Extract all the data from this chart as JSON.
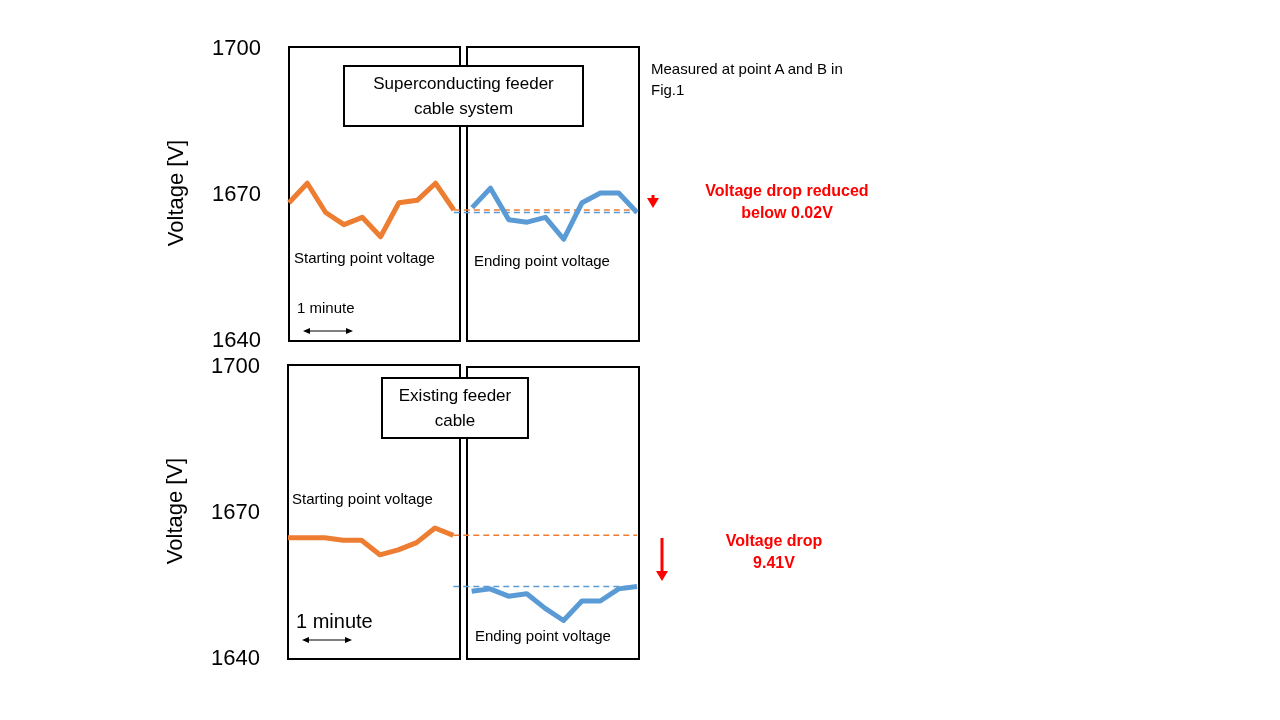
{
  "chart_data": [
    {
      "type": "line",
      "title": "Superconducting feeder cable system",
      "ylabel": "Voltage [V]",
      "categories": [
        null,
        null,
        null,
        null,
        null,
        null,
        null,
        null,
        null,
        null,
        null,
        null,
        null,
        null,
        null,
        null,
        null,
        null,
        null,
        null
      ],
      "series": [
        {
          "color": "#ed7d31",
          "values": [
            1668,
            1672,
            1666,
            1663.5,
            1665,
            1661,
            1668,
            1668.5,
            1672,
            1666.5,
            null,
            null,
            null,
            null,
            null,
            null,
            null,
            null,
            null,
            null
          ]
        },
        {
          "color": "#5b9bd5",
          "values": [
            null,
            null,
            null,
            null,
            null,
            null,
            null,
            null,
            null,
            null,
            1667,
            1671,
            1664.5,
            1664,
            1665,
            1660.5,
            1668,
            1670,
            1670,
            1666
          ]
        }
      ],
      "ylim": [
        1640,
        1700
      ],
      "yticks": [
        1640,
        1670,
        1700
      ],
      "tick_labels": "y",
      "ref_lines": [
        {
          "axis": "y",
          "value": 1666.5,
          "color": "#ed7d31",
          "line_style": "dashed"
        },
        {
          "axis": "y",
          "value": 1666,
          "color": "#5b9bd5",
          "line_style": "dashed"
        }
      ],
      "annotations": [
        "Starting point voltage",
        "1 minute",
        "Ending point voltage",
        "Measured at point A and B in Fig.1",
        "Voltage drop reduced below 0.02V"
      ]
    },
    {
      "type": "line",
      "title": "Existing feeder cable",
      "ylabel": "Voltage [V]",
      "categories": [
        null,
        null,
        null,
        null,
        null,
        null,
        null,
        null,
        null,
        null,
        null,
        null,
        null,
        null,
        null,
        null,
        null,
        null,
        null,
        null
      ],
      "series": [
        {
          "color": "#ed7d31",
          "values": [
            1664.5,
            1664.5,
            1664.5,
            1664,
            1664,
            1661,
            1662,
            1663.5,
            1666.5,
            1665,
            null,
            null,
            null,
            null,
            null,
            null,
            null,
            null,
            null,
            null
          ]
        },
        {
          "color": "#5b9bd5",
          "values": [
            null,
            null,
            null,
            null,
            null,
            null,
            null,
            null,
            null,
            null,
            1653.5,
            1654,
            1652.5,
            1653,
            1650,
            1647.5,
            1651.5,
            1651.5,
            1654,
            1654.5
          ]
        }
      ],
      "ylim": [
        1640,
        1700
      ],
      "yticks": [
        1640,
        1670,
        1700
      ],
      "tick_labels": "y",
      "ref_lines": [
        {
          "axis": "y",
          "value": 1665,
          "color": "#ed7d31",
          "line_style": "dashed"
        },
        {
          "axis": "y",
          "value": 1654.5,
          "color": "#5b9bd5",
          "line_style": "dashed"
        }
      ],
      "annotations": [
        "Starting point voltage",
        "1 minute",
        "Ending point voltage",
        "Voltage drop 9.41V"
      ]
    }
  ]
}
